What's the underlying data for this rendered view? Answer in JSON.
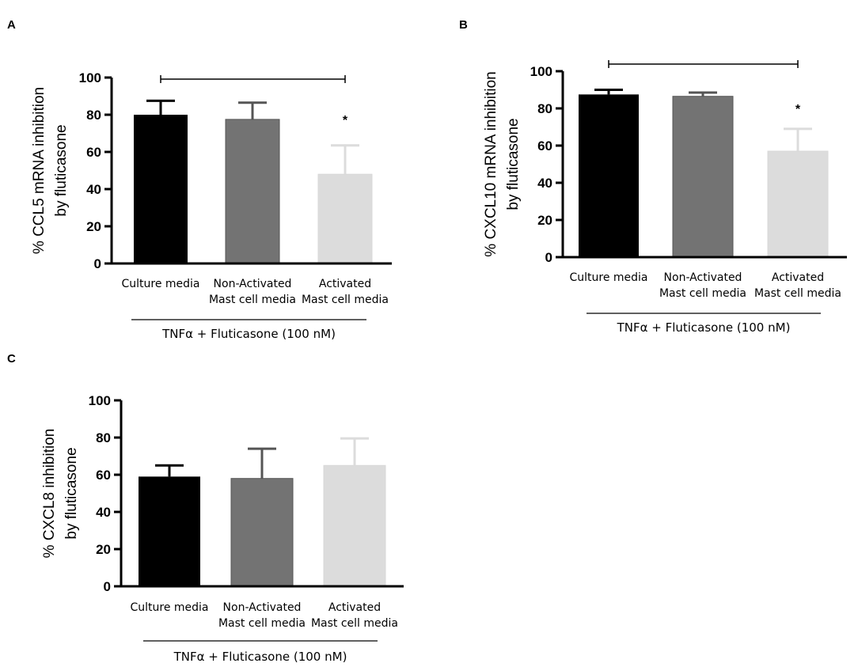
{
  "figure": {
    "panels": [
      "A",
      "B",
      "C"
    ]
  },
  "chart_data": [
    {
      "panel": "A",
      "type": "bar",
      "categories": [
        [
          "Culture media"
        ],
        [
          "Non-Activated",
          "Mast cell media"
        ],
        [
          "Activated",
          "Mast cell media"
        ]
      ],
      "values": [
        80,
        77.5,
        48
      ],
      "errors": [
        7.5,
        9,
        15.5
      ],
      "colors": [
        "#000000",
        "#737373",
        "#dcdcdc"
      ],
      "ylabel": [
        "% CCL5 mRNA inhibition",
        "by fluticasone"
      ],
      "ylim": [
        0,
        100
      ],
      "yticks": [
        0,
        20,
        40,
        60,
        80,
        100
      ],
      "group_label": "TNFα + Fluticasone (100 nM)",
      "significance_marker": "*",
      "significance_bar": [
        0,
        2
      ]
    },
    {
      "panel": "B",
      "type": "bar",
      "categories": [
        [
          "Culture media"
        ],
        [
          "Non-Activated",
          "Mast cell media"
        ],
        [
          "Activated",
          "Mast cell media"
        ]
      ],
      "values": [
        87.5,
        86.5,
        57
      ],
      "errors": [
        2.5,
        2,
        12
      ],
      "colors": [
        "#000000",
        "#737373",
        "#dcdcdc"
      ],
      "ylabel": [
        "% CXCL10 mRNA inhibition",
        "by fluticasone"
      ],
      "ylim": [
        0,
        100
      ],
      "yticks": [
        0,
        20,
        40,
        60,
        80,
        100
      ],
      "group_label": "TNFα + Fluticasone (100 nM)",
      "significance_marker": "*",
      "significance_bar": [
        0,
        2
      ]
    },
    {
      "panel": "C",
      "type": "bar",
      "categories": [
        [
          "Culture media"
        ],
        [
          "Non-Activated",
          "Mast cell media"
        ],
        [
          "Activated",
          "Mast cell media"
        ]
      ],
      "values": [
        59,
        58,
        65
      ],
      "errors": [
        6,
        16,
        14.5
      ],
      "colors": [
        "#000000",
        "#737373",
        "#dcdcdc"
      ],
      "ylabel": [
        "% CXCL8 inhibition",
        "by fluticasone"
      ],
      "ylim": [
        0,
        100
      ],
      "yticks": [
        0,
        20,
        40,
        60,
        80,
        100
      ],
      "group_label": "TNFα + Fluticasone (100 nM)",
      "significance_marker": "",
      "significance_bar": null
    }
  ]
}
